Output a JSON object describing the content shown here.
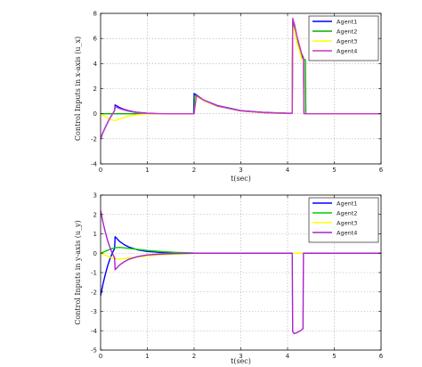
{
  "chart_data": [
    {
      "type": "line",
      "xlabel": "t(sec)",
      "ylabel": "Control Inputs in x-axis (u_x)",
      "xlim": [
        0,
        6
      ],
      "ylim": [
        -4,
        8
      ],
      "xticks": [
        "0",
        "1",
        "2",
        "3",
        "4",
        "5",
        "6"
      ],
      "yticks": [
        "8",
        "6",
        "4",
        "2",
        "0",
        "-2",
        "-4"
      ],
      "grid": true,
      "legend_position": "top-right",
      "series": [
        {
          "name": "Agent1",
          "color": "#0000ff",
          "x": [
            0,
            0.05,
            0.1,
            0.15,
            0.2,
            0.25,
            0.3,
            0.31,
            0.35,
            0.4,
            0.5,
            0.6,
            0.7,
            0.8,
            1.0,
            1.2,
            1.5,
            1.99,
            2.0,
            2.05,
            2.2,
            2.5,
            3.0,
            3.5,
            4.0,
            4.1,
            4.11,
            4.15,
            4.2,
            4.3,
            4.34,
            4.35,
            4.5,
            5.0,
            6.0
          ],
          "y": [
            -2.0,
            -1.5,
            -1.1,
            -0.7,
            -0.35,
            -0.05,
            0.25,
            0.7,
            0.62,
            0.5,
            0.35,
            0.24,
            0.16,
            0.1,
            0.04,
            0.01,
            0.0,
            0.0,
            1.6,
            1.5,
            1.1,
            0.65,
            0.25,
            0.1,
            0.04,
            0.04,
            7.4,
            7.0,
            6.1,
            4.7,
            4.4,
            0.0,
            0.0,
            0.0,
            0.0
          ]
        },
        {
          "name": "Agent2",
          "color": "#00b000",
          "x": [
            0,
            1.99,
            2.0,
            2.01,
            2.05,
            2.2,
            2.5,
            3.0,
            3.5,
            4.0,
            4.1,
            4.11,
            4.15,
            4.2,
            4.3,
            4.34,
            4.35,
            4.38,
            4.39,
            5.0,
            6.0
          ],
          "y": [
            0.0,
            0.0,
            0.0,
            1.45,
            1.4,
            1.05,
            0.6,
            0.22,
            0.08,
            0.03,
            0.03,
            7.2,
            6.8,
            5.9,
            4.5,
            4.3,
            4.3,
            4.3,
            0.0,
            0.0,
            0.0
          ]
        },
        {
          "name": "Agent3",
          "color": "#ffff00",
          "x": [
            0,
            0.1,
            0.2,
            0.3,
            0.35,
            0.4,
            0.5,
            0.6,
            0.7,
            0.8,
            1.0,
            1.2,
            1.5,
            2.0,
            2.05,
            2.2,
            2.5,
            3.0,
            3.5,
            4.0,
            4.1,
            4.11,
            4.15,
            4.2,
            4.3,
            4.34,
            4.35,
            5.0,
            6.0
          ],
          "y": [
            0.0,
            -0.25,
            -0.45,
            -0.55,
            -0.5,
            -0.42,
            -0.3,
            -0.2,
            -0.13,
            -0.08,
            -0.03,
            -0.01,
            0.0,
            0.0,
            1.4,
            1.05,
            0.6,
            0.22,
            0.08,
            0.03,
            0.03,
            7.0,
            6.6,
            5.7,
            4.4,
            4.2,
            0.0,
            0.0,
            0.0
          ]
        },
        {
          "name": "Agent4",
          "color": "#cc33cc",
          "x": [
            0,
            0.05,
            0.1,
            0.15,
            0.2,
            0.25,
            0.3,
            0.31,
            0.35,
            0.4,
            0.5,
            0.6,
            0.7,
            0.8,
            1.0,
            1.2,
            1.5,
            2.0,
            2.05,
            2.2,
            2.5,
            3.0,
            3.5,
            4.0,
            4.1,
            4.11,
            4.15,
            4.2,
            4.3,
            4.34,
            4.35,
            5.0,
            6.0
          ],
          "y": [
            -2.0,
            -1.5,
            -1.1,
            -0.7,
            -0.35,
            -0.05,
            0.25,
            0.55,
            0.5,
            0.42,
            0.3,
            0.2,
            0.13,
            0.08,
            0.03,
            0.01,
            0.0,
            0.0,
            1.45,
            1.1,
            0.62,
            0.23,
            0.09,
            0.03,
            0.03,
            7.6,
            7.1,
            6.2,
            4.8,
            4.5,
            0.0,
            0.0,
            0.0
          ]
        }
      ]
    },
    {
      "type": "line",
      "xlabel": "t(sec)",
      "ylabel": "Control Inputs in y-axis (u_y)",
      "xlim": [
        0,
        6
      ],
      "ylim": [
        -5,
        3
      ],
      "xticks": [
        "0",
        "1",
        "2",
        "3",
        "4",
        "5",
        "6"
      ],
      "yticks": [
        "3",
        "2",
        "1",
        "0",
        "-1",
        "-2",
        "-3",
        "-4",
        "-5"
      ],
      "grid": true,
      "legend_position": "top-right",
      "series": [
        {
          "name": "Agent1",
          "color": "#0000ff",
          "x": [
            0,
            0.05,
            0.1,
            0.15,
            0.2,
            0.25,
            0.3,
            0.31,
            0.35,
            0.4,
            0.5,
            0.6,
            0.8,
            1.0,
            1.3,
            1.6,
            2.0,
            2.5,
            6.0
          ],
          "y": [
            -2.2,
            -1.6,
            -1.1,
            -0.65,
            -0.3,
            0.0,
            0.25,
            0.85,
            0.75,
            0.62,
            0.45,
            0.32,
            0.17,
            0.09,
            0.04,
            0.02,
            0.0,
            0.0,
            0.0
          ]
        },
        {
          "name": "Agent2",
          "color": "#00cc00",
          "x": [
            0,
            0.1,
            0.2,
            0.3,
            0.4,
            0.5,
            0.7,
            1.0,
            1.3,
            1.6,
            2.0,
            2.5,
            6.0
          ],
          "y": [
            0.0,
            0.1,
            0.2,
            0.28,
            0.3,
            0.28,
            0.22,
            0.14,
            0.08,
            0.04,
            0.01,
            0.0,
            0.0
          ]
        },
        {
          "name": "Agent3",
          "color": "#ffff00",
          "x": [
            0,
            0.1,
            0.2,
            0.3,
            0.4,
            0.5,
            0.7,
            1.0,
            1.3,
            1.6,
            2.0,
            2.5,
            6.0
          ],
          "y": [
            0.0,
            -0.1,
            -0.2,
            -0.28,
            -0.3,
            -0.28,
            -0.22,
            -0.14,
            -0.08,
            -0.04,
            -0.01,
            0.0,
            0.0
          ]
        },
        {
          "name": "Agent4",
          "color": "#aa22cc",
          "x": [
            0,
            0.05,
            0.1,
            0.15,
            0.2,
            0.25,
            0.3,
            0.31,
            0.35,
            0.4,
            0.5,
            0.6,
            0.8,
            1.0,
            1.3,
            1.6,
            2.0,
            2.5,
            4.1,
            4.11,
            4.14,
            4.2,
            4.28,
            4.33,
            4.34,
            6.0
          ],
          "y": [
            2.2,
            1.6,
            1.1,
            0.65,
            0.3,
            0.0,
            -0.25,
            -0.85,
            -0.75,
            -0.62,
            -0.45,
            -0.32,
            -0.17,
            -0.09,
            -0.04,
            -0.02,
            0.0,
            0.0,
            0.0,
            -4.05,
            -4.15,
            -4.1,
            -4.0,
            -3.9,
            0.0,
            0.0
          ]
        }
      ]
    }
  ]
}
